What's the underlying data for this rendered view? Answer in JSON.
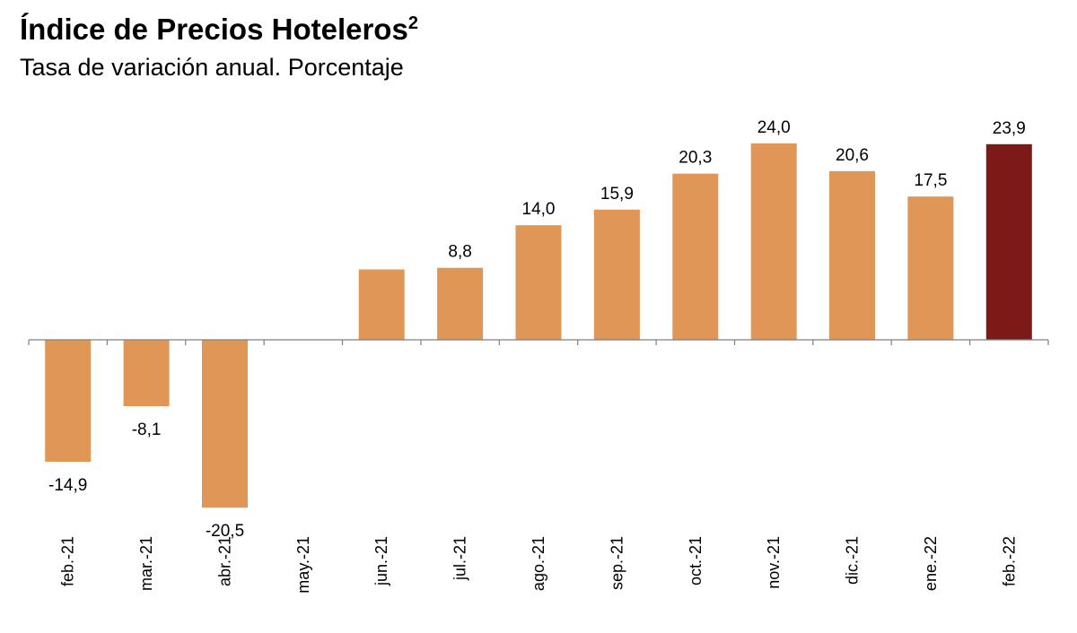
{
  "title": "Índice de Precios Hoteleros",
  "title_superscript": "2",
  "subtitle": "Tasa de variación anual. Porcentaje",
  "colors": {
    "bar": "#E09656",
    "highlight": "#7B1A16",
    "axis": "#7f7f7f"
  },
  "chart_data": {
    "type": "bar",
    "categories": [
      "feb.-21",
      "mar.-21",
      "abr.-21",
      "may.-21",
      "jun.-21",
      "jul.-21",
      "ago.-21",
      "sep.-21",
      "oct.-21",
      "nov.-21",
      "dic.-21",
      "ene.-22",
      "feb.-22"
    ],
    "values": [
      -14.9,
      -8.1,
      -20.5,
      0.0,
      8.6,
      8.8,
      14.0,
      15.9,
      20.3,
      24.0,
      20.6,
      17.5,
      23.9
    ],
    "data_labels": [
      "-14,9",
      "-8,1",
      "-20,5",
      "",
      "",
      "8,8",
      "14,0",
      "15,9",
      "20,3",
      "24,0",
      "20,6",
      "17,5",
      "23,9"
    ],
    "highlight_index": 12,
    "title": "Índice de Precios Hoteleros",
    "subtitle": "Tasa de variación anual. Porcentaje",
    "xlabel": "",
    "ylabel": "",
    "ylim": [
      -24,
      27
    ],
    "grid": false,
    "legend": "none"
  }
}
